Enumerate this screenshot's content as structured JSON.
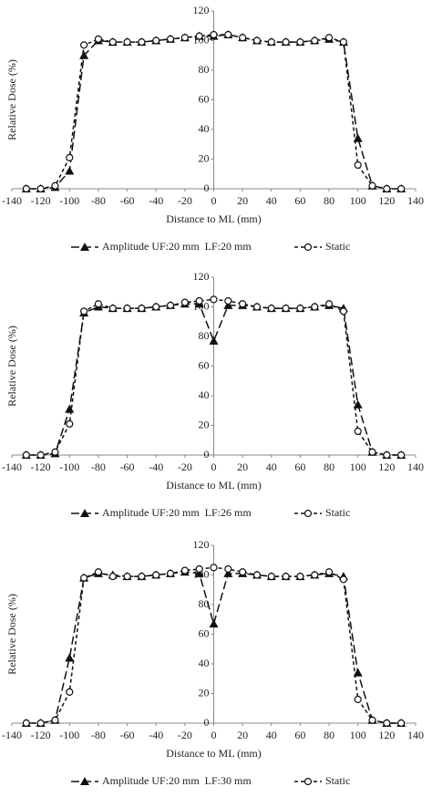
{
  "chart_data": [
    {
      "type": "line",
      "x_label": "Distance to ML (mm)",
      "y_label": "Relative Dose (%)",
      "x": [
        -130,
        -120,
        -110,
        -100,
        -90,
        -80,
        -70,
        -60,
        -50,
        -40,
        -30,
        -20,
        -10,
        0,
        10,
        20,
        30,
        40,
        50,
        60,
        70,
        80,
        90,
        100,
        110,
        120,
        130
      ],
      "xlim": [
        -140,
        140
      ],
      "xticks": [
        -140,
        -120,
        -100,
        -80,
        -60,
        -40,
        -20,
        0,
        20,
        40,
        60,
        80,
        100,
        120,
        140
      ],
      "ylim": [
        0,
        120
      ],
      "yticks": [
        0,
        20,
        40,
        60,
        80,
        100,
        120
      ],
      "series": [
        {
          "name": "Amplitude UF:20 mm  LF:20 mm",
          "color": "#111111",
          "marker": "triangle",
          "dash": "long",
          "values": [
            0,
            0,
            1,
            12,
            90,
            100,
            99,
            99,
            99,
            100,
            101,
            102,
            103,
            103,
            104,
            102,
            100,
            99,
            99,
            99,
            100,
            101,
            99,
            34,
            2,
            0,
            0
          ]
        },
        {
          "name": "Static",
          "color": "#111111",
          "marker": "circle",
          "dash": "short",
          "values": [
            0,
            0,
            2,
            21,
            97,
            101,
            99,
            99,
            99,
            100,
            101,
            102,
            103,
            104,
            104,
            102,
            100,
            99,
            99,
            99,
            100,
            102,
            99,
            16,
            2,
            0,
            0
          ]
        }
      ]
    },
    {
      "type": "line",
      "x_label": "Distance to ML (mm)",
      "y_label": "Relative Dose (%)",
      "x": [
        -130,
        -120,
        -110,
        -100,
        -90,
        -80,
        -70,
        -60,
        -50,
        -40,
        -30,
        -20,
        -10,
        0,
        10,
        20,
        30,
        40,
        50,
        60,
        70,
        80,
        90,
        100,
        110,
        120,
        130
      ],
      "xlim": [
        -140,
        140
      ],
      "xticks": [
        -140,
        -120,
        -100,
        -80,
        -60,
        -40,
        -20,
        0,
        20,
        40,
        60,
        80,
        100,
        120,
        140
      ],
      "ylim": [
        0,
        120
      ],
      "yticks": [
        0,
        20,
        40,
        60,
        80,
        100,
        120
      ],
      "series": [
        {
          "name": "Amplitude UF:20 mm  LF:26 mm",
          "color": "#111111",
          "marker": "triangle",
          "dash": "long",
          "values": [
            0,
            0,
            1,
            31,
            96,
            100,
            99,
            99,
            99,
            100,
            101,
            102,
            102,
            77,
            101,
            101,
            100,
            99,
            99,
            99,
            100,
            101,
            99,
            34,
            2,
            0,
            0
          ]
        },
        {
          "name": "Static",
          "color": "#111111",
          "marker": "circle",
          "dash": "short",
          "values": [
            0,
            0,
            2,
            21,
            97,
            102,
            99,
            99,
            99,
            100,
            101,
            103,
            104,
            105,
            104,
            102,
            100,
            99,
            99,
            99,
            100,
            102,
            97,
            16,
            2,
            0,
            0
          ]
        }
      ]
    },
    {
      "type": "line",
      "x_label": "Distance to ML (mm)",
      "y_label": "Relative Dose (%)",
      "x": [
        -130,
        -120,
        -110,
        -100,
        -90,
        -80,
        -70,
        -60,
        -50,
        -40,
        -30,
        -20,
        -10,
        0,
        10,
        20,
        30,
        40,
        50,
        60,
        70,
        80,
        90,
        100,
        110,
        120,
        130
      ],
      "xlim": [
        -140,
        140
      ],
      "xticks": [
        -140,
        -120,
        -100,
        -80,
        -60,
        -40,
        -20,
        0,
        20,
        40,
        60,
        80,
        100,
        120,
        140
      ],
      "ylim": [
        0,
        120
      ],
      "yticks": [
        0,
        20,
        40,
        60,
        80,
        100,
        120
      ],
      "series": [
        {
          "name": "Amplitude UF:20 mm  LF:30 mm",
          "color": "#111111",
          "marker": "triangle",
          "dash": "long",
          "values": [
            0,
            0,
            2,
            44,
            98,
            101,
            100,
            99,
            99,
            100,
            101,
            102,
            101,
            67,
            101,
            101,
            100,
            99,
            99,
            99,
            100,
            101,
            99,
            34,
            2,
            0,
            0
          ]
        },
        {
          "name": "Static",
          "color": "#111111",
          "marker": "circle",
          "dash": "short",
          "values": [
            0,
            0,
            2,
            21,
            98,
            102,
            99,
            99,
            99,
            100,
            101,
            103,
            104,
            105,
            104,
            102,
            100,
            99,
            99,
            99,
            100,
            102,
            97,
            16,
            2,
            0,
            0
          ]
        }
      ]
    }
  ]
}
